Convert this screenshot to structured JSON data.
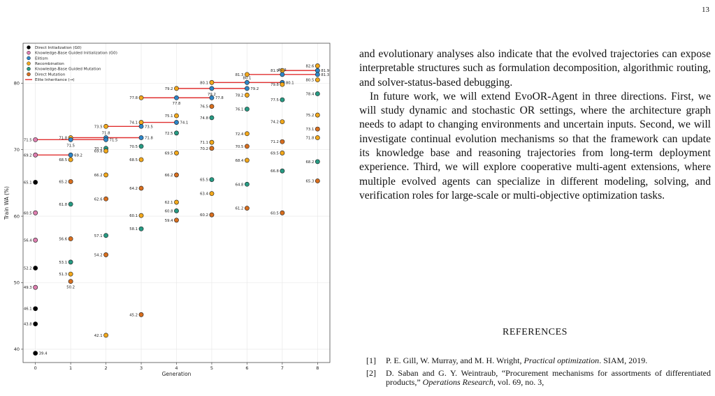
{
  "page": {
    "number": "13"
  },
  "body": {
    "paragraphs": [
      "and evolutionary analyses also indicate that the evolved trajectories can expose interpretable structures such as formulation decomposition, algorithmic routing, and solver-status-based debugging.",
      "In future work, we will extend EvoOR-Agent in three directions. First, we will study dynamic and stochastic OR settings, where the architecture graph needs to adapt to changing environments and uncertain inputs. Second, we will investigate continual evolution mechanisms so that the framework can update its knowledge base and reasoning trajectories from long-term deployment experience. Third, we will explore cooperative multi-agent extensions, where multiple evolved agents can specialize in different modeling, solving, and verification roles for large-scale or multi-objective optimization tasks."
    ]
  },
  "references": {
    "heading": "REFERENCES",
    "items": [
      {
        "num": "[1]",
        "pre": "P. E. Gill, W. Murray, and M. H. Wright, ",
        "title": "Practical optimization",
        "post": ". SIAM, 2019."
      },
      {
        "num": "[2]",
        "pre": "D. Saban and G. Y. Weintraub, “Procurement mechanisms for assortments of differentiated products,” ",
        "title": "Operations Research",
        "post": ", vol. 69, no. 3,"
      }
    ]
  },
  "colors": {
    "direct_init": "#000000",
    "kb_init": "#dd7fb0",
    "elitism": "#2e86c8",
    "recombination": "#f2a81c",
    "kb_mutation": "#279a83",
    "direct_mutation": "#d86f1f",
    "elite_inheritance": "#e03030"
  },
  "chart_data": {
    "type": "scatter",
    "xlabel": "Generation",
    "ylabel": "Train WA (%)",
    "xlim": [
      -0.35,
      8.35
    ],
    "ylim": [
      38,
      86
    ],
    "xticks": [
      0,
      1,
      2,
      3,
      4,
      5,
      6,
      7,
      8
    ],
    "yticks": [
      40,
      50,
      60,
      70,
      80
    ],
    "grid": true,
    "legend_placement": "top-left",
    "legend": [
      {
        "key": "direct_init",
        "label": "Direct Initialization (G0)",
        "kind": "marker"
      },
      {
        "key": "kb_init",
        "label": "Knowledge-Base Guided Initialization (G0)",
        "kind": "marker"
      },
      {
        "key": "elitism",
        "label": "Elitism",
        "kind": "marker"
      },
      {
        "key": "recombination",
        "label": "Recombination",
        "kind": "marker"
      },
      {
        "key": "kb_mutation",
        "label": "Knowledge-Base Guided Mutation",
        "kind": "marker"
      },
      {
        "key": "direct_mutation",
        "label": "Direct Mutation",
        "kind": "marker"
      },
      {
        "key": "elite_inheritance",
        "label": "Elite Inheritance (→)",
        "kind": "line"
      }
    ],
    "points": [
      {
        "x": 0,
        "y": 71.5,
        "cat": "kb_init",
        "label": "71.5",
        "pos": "l"
      },
      {
        "x": 0,
        "y": 69.2,
        "cat": "kb_init",
        "label": "69.2",
        "pos": "l"
      },
      {
        "x": 0,
        "y": 65.1,
        "cat": "direct_init",
        "label": "65.1",
        "pos": "l"
      },
      {
        "x": 0,
        "y": 60.5,
        "cat": "kb_init",
        "label": "60.5",
        "pos": "l"
      },
      {
        "x": 0,
        "y": 56.4,
        "cat": "kb_init",
        "label": "56.4",
        "pos": "l"
      },
      {
        "x": 0,
        "y": 52.2,
        "cat": "direct_init",
        "label": "52.2",
        "pos": "l"
      },
      {
        "x": 0,
        "y": 49.3,
        "cat": "kb_init",
        "label": "49.3",
        "pos": "l"
      },
      {
        "x": 0,
        "y": 46.1,
        "cat": "direct_init",
        "label": "46.1",
        "pos": "l"
      },
      {
        "x": 0,
        "y": 43.8,
        "cat": "direct_init",
        "label": "43.8",
        "pos": "l"
      },
      {
        "x": 0,
        "y": 39.4,
        "cat": "direct_init",
        "label": "39.4",
        "pos": "r"
      },
      {
        "x": 1,
        "y": 71.8,
        "cat": "recombination",
        "label": "71.8",
        "pos": "l"
      },
      {
        "x": 1,
        "y": 71.5,
        "cat": "elitism",
        "label": "71.5",
        "pos": "b"
      },
      {
        "x": 1,
        "y": 69.2,
        "cat": "elitism",
        "label": "69.2",
        "pos": "r"
      },
      {
        "x": 1,
        "y": 68.5,
        "cat": "recombination",
        "label": "68.5",
        "pos": "l"
      },
      {
        "x": 1,
        "y": 65.2,
        "cat": "direct_mutation",
        "label": "65.2",
        "pos": "l"
      },
      {
        "x": 1,
        "y": 61.8,
        "cat": "kb_mutation",
        "label": "61.8",
        "pos": "l"
      },
      {
        "x": 1,
        "y": 56.6,
        "cat": "direct_mutation",
        "label": "56.6",
        "pos": "l"
      },
      {
        "x": 1,
        "y": 53.1,
        "cat": "kb_mutation",
        "label": "53.1",
        "pos": "l"
      },
      {
        "x": 1,
        "y": 51.3,
        "cat": "recombination",
        "label": "51.3",
        "pos": "l"
      },
      {
        "x": 1,
        "y": 50.2,
        "cat": "direct_mutation",
        "label": "50.2",
        "pos": "b"
      },
      {
        "x": 2,
        "y": 73.5,
        "cat": "recombination",
        "label": "73.5",
        "pos": "l"
      },
      {
        "x": 2,
        "y": 71.8,
        "cat": "elitism",
        "label": "71.8",
        "pos": "t"
      },
      {
        "x": 2,
        "y": 71.5,
        "cat": "elitism",
        "label": "71.5",
        "pos": "r"
      },
      {
        "x": 2,
        "y": 70.2,
        "cat": "kb_mutation",
        "label": "70.2",
        "pos": "l"
      },
      {
        "x": 2,
        "y": 69.8,
        "cat": "recombination",
        "label": "69.8",
        "pos": "l"
      },
      {
        "x": 2,
        "y": 66.2,
        "cat": "recombination",
        "label": "66.2",
        "pos": "l"
      },
      {
        "x": 2,
        "y": 62.6,
        "cat": "direct_mutation",
        "label": "62.6",
        "pos": "l"
      },
      {
        "x": 2,
        "y": 57.1,
        "cat": "kb_mutation",
        "label": "57.1",
        "pos": "l"
      },
      {
        "x": 2,
        "y": 54.2,
        "cat": "direct_mutation",
        "label": "54.2",
        "pos": "l"
      },
      {
        "x": 2,
        "y": 42.1,
        "cat": "recombination",
        "label": "42.1",
        "pos": "l"
      },
      {
        "x": 3,
        "y": 77.8,
        "cat": "recombination",
        "label": "77.8",
        "pos": "l"
      },
      {
        "x": 3,
        "y": 74.1,
        "cat": "recombination",
        "label": "74.1",
        "pos": "l"
      },
      {
        "x": 3,
        "y": 73.5,
        "cat": "elitism",
        "label": "73.5",
        "pos": "r"
      },
      {
        "x": 3,
        "y": 71.8,
        "cat": "elitism",
        "label": "71.8",
        "pos": "r"
      },
      {
        "x": 3,
        "y": 70.5,
        "cat": "kb_mutation",
        "label": "70.5",
        "pos": "l"
      },
      {
        "x": 3,
        "y": 68.5,
        "cat": "recombination",
        "label": "68.5",
        "pos": "l"
      },
      {
        "x": 3,
        "y": 64.2,
        "cat": "direct_mutation",
        "label": "64.2",
        "pos": "l"
      },
      {
        "x": 3,
        "y": 60.1,
        "cat": "recombination",
        "label": "60.1",
        "pos": "l"
      },
      {
        "x": 3,
        "y": 58.1,
        "cat": "kb_mutation",
        "label": "58.1",
        "pos": "l"
      },
      {
        "x": 3,
        "y": 45.2,
        "cat": "direct_mutation",
        "label": "45.2",
        "pos": "l"
      },
      {
        "x": 4,
        "y": 79.2,
        "cat": "recombination",
        "label": "79.2",
        "pos": "l"
      },
      {
        "x": 4,
        "y": 77.8,
        "cat": "elitism",
        "label": "77.8",
        "pos": "b"
      },
      {
        "x": 4,
        "y": 75.1,
        "cat": "recombination",
        "label": "75.1",
        "pos": "l"
      },
      {
        "x": 4,
        "y": 74.1,
        "cat": "elitism",
        "label": "74.1",
        "pos": "r"
      },
      {
        "x": 4,
        "y": 72.5,
        "cat": "kb_mutation",
        "label": "72.5",
        "pos": "l"
      },
      {
        "x": 4,
        "y": 69.5,
        "cat": "recombination",
        "label": "69.5",
        "pos": "l"
      },
      {
        "x": 4,
        "y": 66.2,
        "cat": "direct_mutation",
        "label": "66.2",
        "pos": "l"
      },
      {
        "x": 4,
        "y": 62.1,
        "cat": "recombination",
        "label": "62.1",
        "pos": "l"
      },
      {
        "x": 4,
        "y": 60.8,
        "cat": "kb_mutation",
        "label": "60.8",
        "pos": "l"
      },
      {
        "x": 4,
        "y": 59.4,
        "cat": "direct_mutation",
        "label": "59.4",
        "pos": "l"
      },
      {
        "x": 5,
        "y": 80.1,
        "cat": "recombination",
        "label": "80.1",
        "pos": "l"
      },
      {
        "x": 5,
        "y": 79.2,
        "cat": "elitism",
        "label": "79.2",
        "pos": "b"
      },
      {
        "x": 5,
        "y": 77.8,
        "cat": "elitism",
        "label": "77.8",
        "pos": "r"
      },
      {
        "x": 5,
        "y": 76.5,
        "cat": "direct_mutation",
        "label": "76.5",
        "pos": "l"
      },
      {
        "x": 5,
        "y": 74.8,
        "cat": "kb_mutation",
        "label": "74.8",
        "pos": "l"
      },
      {
        "x": 5,
        "y": 71.1,
        "cat": "recombination",
        "label": "71.1",
        "pos": "l"
      },
      {
        "x": 5,
        "y": 70.2,
        "cat": "direct_mutation",
        "label": "70.2",
        "pos": "l"
      },
      {
        "x": 5,
        "y": 65.5,
        "cat": "kb_mutation",
        "label": "65.5",
        "pos": "l"
      },
      {
        "x": 5,
        "y": 63.4,
        "cat": "recombination",
        "label": "63.4",
        "pos": "l"
      },
      {
        "x": 5,
        "y": 60.2,
        "cat": "direct_mutation",
        "label": "60.2",
        "pos": "l"
      },
      {
        "x": 6,
        "y": 81.3,
        "cat": "recombination",
        "label": "81.3",
        "pos": "l"
      },
      {
        "x": 6,
        "y": 80.1,
        "cat": "elitism",
        "label": "80.1",
        "pos": "t"
      },
      {
        "x": 6,
        "y": 79.2,
        "cat": "elitism",
        "label": "79.2",
        "pos": "r"
      },
      {
        "x": 6,
        "y": 78.2,
        "cat": "recombination",
        "label": "78.2",
        "pos": "l"
      },
      {
        "x": 6,
        "y": 76.1,
        "cat": "kb_mutation",
        "label": "76.1",
        "pos": "l"
      },
      {
        "x": 6,
        "y": 72.4,
        "cat": "recombination",
        "label": "72.4",
        "pos": "l"
      },
      {
        "x": 6,
        "y": 70.5,
        "cat": "direct_mutation",
        "label": "70.5",
        "pos": "l"
      },
      {
        "x": 6,
        "y": 68.4,
        "cat": "recombination",
        "label": "68.4",
        "pos": "l"
      },
      {
        "x": 6,
        "y": 64.8,
        "cat": "kb_mutation",
        "label": "64.8",
        "pos": "l"
      },
      {
        "x": 6,
        "y": 61.2,
        "cat": "direct_mutation",
        "label": "61.2",
        "pos": "l"
      },
      {
        "x": 7,
        "y": 81.9,
        "cat": "recombination",
        "label": "81.9",
        "pos": "l"
      },
      {
        "x": 7,
        "y": 81.3,
        "cat": "elitism",
        "label": "81.3",
        "pos": "t"
      },
      {
        "x": 7,
        "y": 80.1,
        "cat": "elitism",
        "label": "80.1",
        "pos": "r"
      },
      {
        "x": 7,
        "y": 79.8,
        "cat": "recombination",
        "label": "79.8",
        "pos": "l"
      },
      {
        "x": 7,
        "y": 77.5,
        "cat": "kb_mutation",
        "label": "77.5",
        "pos": "l"
      },
      {
        "x": 7,
        "y": 74.2,
        "cat": "recombination",
        "label": "74.2",
        "pos": "l"
      },
      {
        "x": 7,
        "y": 71.2,
        "cat": "direct_mutation",
        "label": "71.2",
        "pos": "l"
      },
      {
        "x": 7,
        "y": 69.5,
        "cat": "recombination",
        "label": "69.5",
        "pos": "l"
      },
      {
        "x": 7,
        "y": 66.8,
        "cat": "kb_mutation",
        "label": "66.8",
        "pos": "l"
      },
      {
        "x": 7,
        "y": 60.5,
        "cat": "direct_mutation",
        "label": "60.5",
        "pos": "l"
      },
      {
        "x": 8,
        "y": 82.6,
        "cat": "recombination",
        "label": "82.6",
        "pos": "l"
      },
      {
        "x": 8,
        "y": 81.9,
        "cat": "elitism",
        "label": "81.9",
        "pos": "r"
      },
      {
        "x": 8,
        "y": 81.3,
        "cat": "elitism",
        "label": "81.3",
        "pos": "r"
      },
      {
        "x": 8,
        "y": 80.5,
        "cat": "recombination",
        "label": "80.5",
        "pos": "l"
      },
      {
        "x": 8,
        "y": 78.4,
        "cat": "kb_mutation",
        "label": "78.4",
        "pos": "l"
      },
      {
        "x": 8,
        "y": 75.2,
        "cat": "recombination",
        "label": "75.2",
        "pos": "l"
      },
      {
        "x": 8,
        "y": 73.1,
        "cat": "direct_mutation",
        "label": "73.1",
        "pos": "l"
      },
      {
        "x": 8,
        "y": 71.8,
        "cat": "recombination",
        "label": "71.8",
        "pos": "l"
      },
      {
        "x": 8,
        "y": 68.2,
        "cat": "kb_mutation",
        "label": "68.2",
        "pos": "l"
      },
      {
        "x": 8,
        "y": 65.3,
        "cat": "direct_mutation",
        "label": "65.3",
        "pos": "l"
      }
    ],
    "elite_links": [
      {
        "from": [
          0,
          71.5
        ],
        "to": [
          1,
          71.5
        ]
      },
      {
        "from": [
          0,
          69.2
        ],
        "to": [
          1,
          69.2
        ]
      },
      {
        "from": [
          1,
          71.8
        ],
        "to": [
          2,
          71.8
        ]
      },
      {
        "from": [
          1,
          71.5
        ],
        "to": [
          2,
          71.5
        ]
      },
      {
        "from": [
          2,
          73.5
        ],
        "to": [
          3,
          73.5
        ]
      },
      {
        "from": [
          2,
          71.8
        ],
        "to": [
          3,
          71.8
        ]
      },
      {
        "from": [
          3,
          77.8
        ],
        "to": [
          4,
          77.8
        ]
      },
      {
        "from": [
          3,
          74.1
        ],
        "to": [
          4,
          74.1
        ]
      },
      {
        "from": [
          4,
          79.2
        ],
        "to": [
          5,
          79.2
        ]
      },
      {
        "from": [
          4,
          77.8
        ],
        "to": [
          5,
          77.8
        ]
      },
      {
        "from": [
          5,
          80.1
        ],
        "to": [
          6,
          80.1
        ]
      },
      {
        "from": [
          5,
          79.2
        ],
        "to": [
          6,
          79.2
        ]
      },
      {
        "from": [
          6,
          81.3
        ],
        "to": [
          7,
          81.3
        ]
      },
      {
        "from": [
          6,
          80.1
        ],
        "to": [
          7,
          80.1
        ]
      },
      {
        "from": [
          7,
          81.9
        ],
        "to": [
          8,
          81.9
        ]
      },
      {
        "from": [
          7,
          81.3
        ],
        "to": [
          8,
          81.3
        ]
      }
    ]
  }
}
